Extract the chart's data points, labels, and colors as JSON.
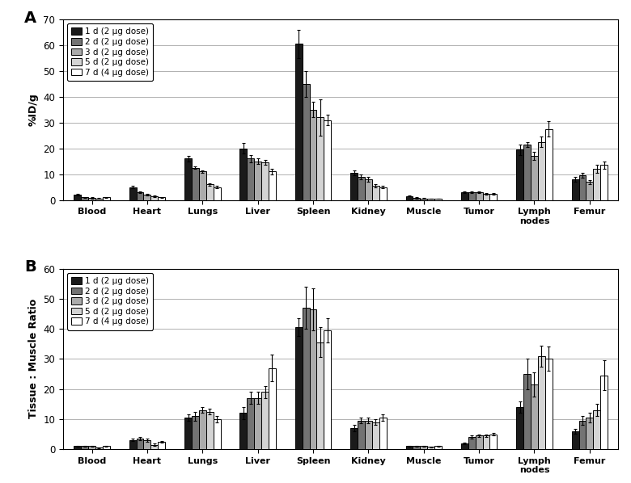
{
  "categories": [
    "Blood",
    "Heart",
    "Lungs",
    "Liver",
    "Spleen",
    "Kidney",
    "Muscle",
    "Tumor",
    "Lymph\nnodes",
    "Femur"
  ],
  "legend_labels": [
    "1 d (2 μg dose)",
    "2 d (2 μg dose)",
    "3 d (2 μg dose)",
    "5 d (2 μg dose)",
    "7 d (4 μg dose)"
  ],
  "bar_colors": [
    "#1a1a1a",
    "#737373",
    "#ababab",
    "#d4d4d4",
    "#ffffff"
  ],
  "bar_edgecolors": [
    "#000000",
    "#000000",
    "#000000",
    "#000000",
    "#000000"
  ],
  "panel_A": {
    "ylabel": "%ID/g",
    "ylim": [
      0,
      70
    ],
    "yticks": [
      0,
      10,
      20,
      30,
      40,
      50,
      60,
      70
    ],
    "values": [
      [
        2.0,
        5.0,
        16.0,
        20.0,
        60.5,
        10.5,
        1.5,
        3.0,
        19.5,
        8.0
      ],
      [
        1.0,
        3.0,
        12.5,
        16.0,
        45.0,
        9.0,
        0.8,
        3.0,
        21.5,
        9.5
      ],
      [
        0.8,
        2.0,
        11.0,
        15.0,
        35.0,
        8.0,
        0.6,
        3.0,
        17.0,
        7.0
      ],
      [
        0.6,
        1.5,
        6.0,
        14.5,
        32.0,
        5.5,
        0.5,
        2.5,
        22.5,
        12.0
      ],
      [
        1.0,
        1.0,
        5.0,
        11.0,
        31.0,
        5.0,
        0.5,
        2.5,
        27.5,
        13.5
      ]
    ],
    "errors": [
      [
        0.3,
        0.5,
        1.0,
        2.0,
        5.5,
        1.0,
        0.2,
        0.4,
        2.0,
        1.0
      ],
      [
        0.2,
        0.3,
        0.5,
        1.5,
        5.0,
        1.0,
        0.2,
        0.4,
        1.0,
        1.0
      ],
      [
        0.2,
        0.3,
        0.5,
        1.0,
        3.0,
        0.8,
        0.2,
        0.3,
        1.5,
        0.8
      ],
      [
        0.2,
        0.3,
        0.5,
        1.0,
        7.0,
        0.5,
        0.1,
        0.3,
        2.0,
        1.5
      ],
      [
        0.2,
        0.2,
        0.5,
        1.0,
        2.0,
        0.5,
        0.1,
        0.3,
        3.0,
        1.5
      ]
    ]
  },
  "panel_B": {
    "ylabel": "Tissue : Muscle Ratio",
    "ylim": [
      0,
      60
    ],
    "yticks": [
      0,
      10,
      20,
      30,
      40,
      50,
      60
    ],
    "values": [
      [
        1.0,
        3.0,
        10.5,
        12.0,
        40.5,
        7.0,
        1.0,
        2.0,
        14.0,
        6.0
      ],
      [
        1.0,
        3.5,
        11.0,
        17.0,
        47.0,
        9.5,
        1.0,
        4.0,
        25.0,
        9.5
      ],
      [
        1.0,
        3.0,
        13.0,
        17.0,
        46.5,
        9.5,
        1.0,
        4.5,
        21.5,
        10.5
      ],
      [
        0.5,
        1.5,
        12.5,
        19.0,
        35.5,
        9.0,
        0.8,
        4.5,
        31.0,
        13.0
      ],
      [
        1.0,
        2.5,
        10.0,
        27.0,
        39.5,
        10.5,
        1.0,
        5.0,
        30.0,
        24.5
      ]
    ],
    "errors": [
      [
        0.2,
        0.4,
        1.0,
        2.0,
        3.0,
        1.0,
        0.1,
        0.3,
        2.0,
        0.8
      ],
      [
        0.2,
        0.5,
        1.5,
        2.0,
        7.0,
        1.0,
        0.1,
        0.5,
        5.0,
        1.5
      ],
      [
        0.2,
        0.5,
        1.0,
        2.0,
        7.0,
        1.0,
        0.1,
        0.5,
        4.0,
        1.5
      ],
      [
        0.2,
        0.3,
        1.0,
        2.0,
        5.0,
        1.0,
        0.1,
        0.5,
        3.5,
        2.0
      ],
      [
        0.2,
        0.3,
        1.0,
        4.5,
        4.0,
        1.0,
        0.1,
        0.5,
        4.0,
        5.0
      ]
    ]
  }
}
